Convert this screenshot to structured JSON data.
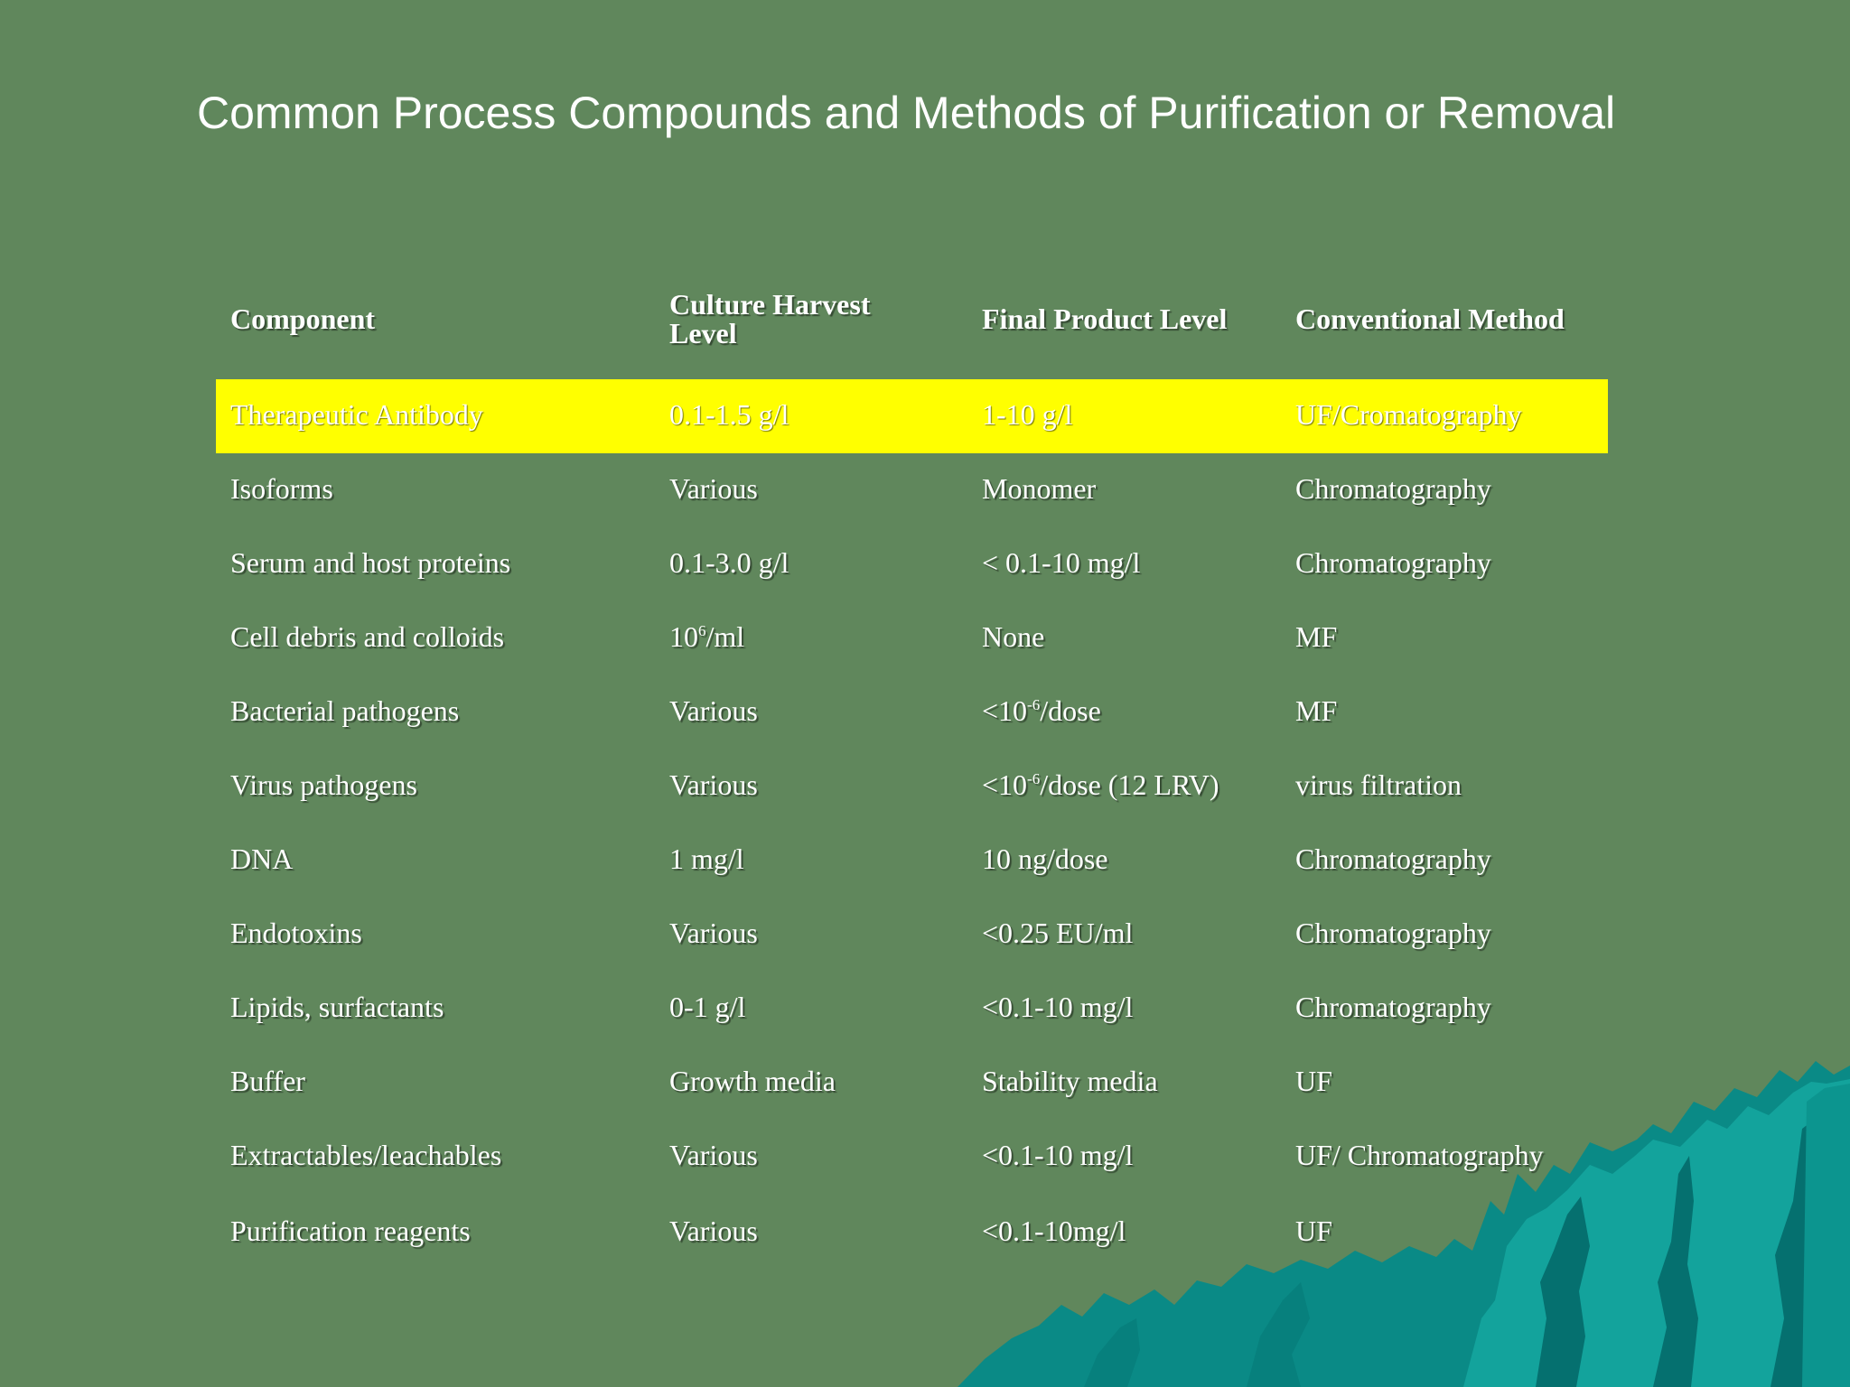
{
  "slide": {
    "title": "Common Process Compounds and Methods of Purification or Removal"
  },
  "table": {
    "headers": [
      "Component",
      "Culture Harvest Level",
      "Final Product Level",
      "Conventional Method"
    ],
    "highlight_color": "#ffff00",
    "rows": [
      [
        "Therapeutic Antibody",
        "0.1-1.5 g/l",
        "1-10 g/l",
        "UF/Cromatography"
      ],
      [
        "Isoforms",
        "Various",
        "Monomer",
        "Chromatography"
      ],
      [
        "Serum and host proteins",
        "0.1-3.0 g/l",
        "< 0.1-10 mg/l",
        "Chromatography"
      ],
      [
        "Cell debris and colloids",
        "10^6/ml",
        "None",
        "MF"
      ],
      [
        "Bacterial pathogens",
        "Various",
        "<10^-6/dose",
        "MF"
      ],
      [
        "Virus pathogens",
        "Various",
        "<10^-6/dose (12 LRV)",
        "virus filtration"
      ],
      [
        "DNA",
        "1 mg/l",
        "10 ng/dose",
        "Chromatography"
      ],
      [
        "Endotoxins",
        "Various",
        "<0.25 EU/ml",
        "Chromatography"
      ],
      [
        "Lipids, surfactants",
        "0-1 g/l",
        "<0.1-10 mg/l",
        "Chromatography"
      ],
      [
        "Buffer",
        "Growth media",
        "Stability media",
        "UF"
      ],
      [
        "Extractables/leachables",
        "Various",
        "<0.1-10 mg/l",
        "UF/ Chromatography"
      ],
      [
        "Purification reagents",
        "Various",
        "<0.1-10mg/l",
        "UF"
      ]
    ]
  },
  "colors": {
    "background": "#60875c",
    "mountain_dark": "#05706f",
    "mountain_mid": "#0a8a86",
    "mountain_light": "#13a39c"
  }
}
